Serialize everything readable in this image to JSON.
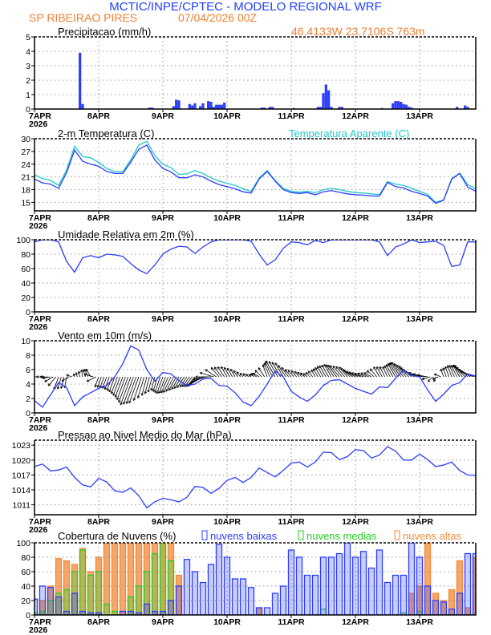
{
  "header": {
    "title": "MCTIC/INPE/CPTEC - MODELO REGIONAL WRF",
    "location": "SP RIBEIRAO PIRES",
    "run": "07/04/2026 00Z",
    "coords": "46.4133W 23.7106S 763m"
  },
  "colors": {
    "blue": "#2a3cff",
    "cyan": "#1fc8c8",
    "green": "#20d020",
    "orange": "#f08a3a",
    "title_blue": "#2040ff",
    "location_orange": "#f07f30"
  },
  "xaxis": {
    "ticks": [
      "7APR",
      "8APR",
      "9APR",
      "10APR",
      "11APR",
      "12APR",
      "13APR"
    ],
    "year": "2026"
  },
  "chart_data": [
    {
      "type": "bar",
      "title": "Precipitacao (mm/h)",
      "ylim": [
        0,
        5
      ],
      "yticks": [
        "0",
        "1",
        "2",
        "3",
        "4",
        "5"
      ],
      "grid": true,
      "bars": [
        [
          "07APR17Z",
          3.9
        ],
        [
          "07APR18Z",
          0.35
        ],
        [
          "08APR19Z",
          0.1
        ],
        [
          "08APR20Z",
          0.1
        ],
        [
          "09APR04Z",
          0.2
        ],
        [
          "09APR05Z",
          0.65
        ],
        [
          "09APR06Z",
          0.6
        ],
        [
          "09APR10Z",
          0.35
        ],
        [
          "09APR11Z",
          0.25
        ],
        [
          "09APR12Z",
          0.4
        ],
        [
          "09APR14Z",
          0.2
        ],
        [
          "09APR15Z",
          0.4
        ],
        [
          "09APR17Z",
          0.55
        ],
        [
          "09APR18Z",
          0.5
        ],
        [
          "09APR19Z",
          0.15
        ],
        [
          "09APR20Z",
          0.3
        ],
        [
          "09APR21Z",
          0.3
        ],
        [
          "09APR22Z",
          0.3
        ],
        [
          "09APR23Z",
          0.45
        ],
        [
          "10APR13Z",
          0.1
        ],
        [
          "10APR14Z",
          0.1
        ],
        [
          "10APR16Z",
          0.15
        ],
        [
          "10APR17Z",
          0.15
        ],
        [
          "11APR01Z",
          0.07
        ],
        [
          "11APR10Z",
          0.15
        ],
        [
          "11APR11Z",
          0.15
        ],
        [
          "11APR12Z",
          1.1
        ],
        [
          "11APR13Z",
          1.7
        ],
        [
          "11APR14Z",
          1.3
        ],
        [
          "11APR15Z",
          0.15
        ],
        [
          "11APR18Z",
          0.15
        ],
        [
          "11APR19Z",
          0.15
        ],
        [
          "12APR10Z",
          0.07
        ],
        [
          "12APR14Z",
          0.4
        ],
        [
          "12APR15Z",
          0.55
        ],
        [
          "12APR16Z",
          0.55
        ],
        [
          "12APR17Z",
          0.5
        ],
        [
          "12APR18Z",
          0.35
        ],
        [
          "12APR19Z",
          0.3
        ],
        [
          "12APR20Z",
          0.15
        ],
        [
          "12APR21Z",
          0.1
        ],
        [
          "13APR14Z",
          0.15
        ],
        [
          "13APR17Z",
          0.25
        ],
        [
          "13APR18Z",
          0.15
        ]
      ]
    },
    {
      "type": "line",
      "title": "2-m Temperatura (C)",
      "ylim": [
        13,
        30
      ],
      "yticks": [
        "15",
        "18",
        "21",
        "24",
        "27",
        "30"
      ],
      "grid": true,
      "series": [
        {
          "values": [
            20.5,
            19.6,
            19.3,
            18.3,
            22,
            27.3,
            24.7,
            24,
            23.5,
            22.3,
            21.8,
            21.8,
            24.5,
            27.5,
            28.5,
            25,
            23,
            22.2,
            20.8,
            20.8,
            21.5,
            21,
            20,
            19.2,
            18.7,
            18.2,
            17.5,
            17.2,
            20.5,
            22.3,
            20,
            18,
            17.3,
            17.1,
            17.3,
            16.8,
            17.5,
            17.8,
            17.4,
            17,
            16.8,
            16.7,
            16.5,
            16.5,
            19.7,
            18.7,
            18.4,
            17.6,
            17.1,
            16.5,
            14.8,
            15.5,
            20.5,
            21.8,
            18.6,
            17.6
          ],
          "color": "#2a3cff"
        },
        {
          "name": "Temperatura Aparente (C)",
          "values": [
            21.5,
            20.6,
            20.2,
            19.0,
            22.6,
            28.2,
            25.8,
            25.5,
            24.4,
            23.0,
            22.2,
            22.2,
            25.0,
            28.5,
            29.4,
            26.0,
            24.0,
            23.2,
            21.6,
            21.7,
            22.5,
            21.8,
            20.8,
            20.0,
            19.5,
            19.0,
            18.2,
            17.6,
            20.7,
            22.5,
            20.2,
            18.3,
            17.6,
            17.4,
            17.6,
            17.3,
            18.0,
            18.3,
            18.0,
            17.6,
            17.3,
            17.2,
            17.0,
            16.8,
            19.9,
            19.3,
            19.0,
            18.3,
            17.6,
            16.9,
            15.0,
            15.6,
            20.6,
            21.9,
            19.2,
            18.2
          ],
          "color": "#1fc8c8"
        }
      ]
    },
    {
      "type": "line",
      "title": "Umidade Relativa em 2m (%)",
      "ylim": [
        0,
        100
      ],
      "yticks": [
        "0",
        "20",
        "40",
        "60",
        "80",
        "100"
      ],
      "grid": true,
      "series": [
        {
          "values": [
            97,
            100,
            100,
            97,
            70,
            55,
            75,
            78,
            75,
            80,
            79,
            77,
            67,
            58,
            53,
            65,
            80,
            87,
            91,
            90,
            81,
            90,
            97,
            100,
            100,
            100,
            100,
            98,
            80,
            65,
            72,
            88,
            97,
            96,
            93,
            99,
            96,
            100,
            100,
            100,
            100,
            100,
            100,
            97,
            78,
            90,
            94,
            100,
            96,
            97,
            98,
            92,
            63,
            65,
            97,
            97
          ],
          "color": "#2a3cff"
        }
      ]
    },
    {
      "type": "line",
      "title": "Vento em 10m (m/s)",
      "ylim": [
        0,
        10
      ],
      "yticks": [
        "0",
        "2",
        "4",
        "6",
        "8",
        "10"
      ],
      "grid": true,
      "series": [
        {
          "values": [
            1.7,
            0.8,
            2.5,
            4.2,
            3.5,
            1.0,
            2.2,
            2.8,
            3.4,
            3.8,
            5.0,
            6.8,
            9.3,
            8.7,
            6.0,
            4.4,
            5.6,
            5.4,
            4.5,
            3.8,
            4.0,
            4.7,
            4.8,
            3.8,
            3.7,
            2.8,
            1.5,
            1.0,
            2.3,
            4.0,
            5.8,
            5.0,
            3.0,
            2.2,
            1.6,
            2.5,
            3.8,
            4.5,
            4.6,
            4.0,
            3.4,
            3.0,
            2.6,
            3.6,
            3.5,
            4.8,
            5.9,
            5.2,
            5.0,
            3.2,
            1.6,
            2.6,
            3.8,
            4.2,
            5.4,
            5.1
          ],
          "color": "#2a3cff"
        }
      ],
      "wind_direction_deg": [
        90,
        90,
        80,
        20,
        10,
        160,
        170,
        150,
        20,
        20,
        20,
        20,
        20,
        20,
        15,
        15,
        20,
        25,
        30,
        35,
        40,
        60,
        90,
        140,
        150,
        150,
        140,
        140,
        120,
        160,
        150,
        150,
        140,
        140,
        130,
        150,
        150,
        150,
        140,
        140,
        120,
        110,
        120,
        150,
        155,
        150,
        140,
        130,
        110,
        100,
        20,
        160,
        160,
        150,
        130,
        110
      ]
    },
    {
      "type": "line",
      "title": "Pressao ao Nivel Medio do Mar (hPa)",
      "ylim": [
        1009,
        1024
      ],
      "yticks": [
        "1011",
        "1014",
        "1017",
        "1020",
        "1023"
      ],
      "grid": true,
      "series": [
        {
          "values": [
            1018.7,
            1019.2,
            1017.8,
            1018.0,
            1018.6,
            1016.5,
            1015.0,
            1014.6,
            1016.3,
            1015.6,
            1013.8,
            1013.5,
            1014.4,
            1012.8,
            1010.4,
            1011.6,
            1012.3,
            1012.0,
            1011.6,
            1012.5,
            1014.7,
            1014.5,
            1013.3,
            1014.3,
            1015.9,
            1016.5,
            1015.5,
            1016.5,
            1018.4,
            1017.5,
            1016.6,
            1017.9,
            1019.4,
            1019.6,
            1018.6,
            1019.6,
            1021.6,
            1021.5,
            1020.1,
            1020.7,
            1022.1,
            1021.9,
            1020.4,
            1021.0,
            1022.7,
            1021.8,
            1020.0,
            1020.0,
            1021.2,
            1020.1,
            1018.7,
            1019.0,
            1019.6,
            1017.9,
            1017.0,
            1016.9
          ],
          "color": "#2a3cff"
        }
      ]
    },
    {
      "type": "bar",
      "title": "Cobertura de Nuvens (%)",
      "ylim": [
        0,
        100
      ],
      "yticks": [
        "0",
        "20",
        "40",
        "60",
        "80",
        "100"
      ],
      "grid": true,
      "legend": "top",
      "series": [
        {
          "name": "nuvens altas",
          "color": "#f08a3a",
          "values": [
            0,
            20,
            40,
            78,
            75,
            70,
            92,
            60,
            80,
            100,
            100,
            100,
            100,
            100,
            100,
            100,
            100,
            100,
            55,
            0,
            0,
            0,
            0,
            0,
            0,
            0,
            0,
            0,
            10,
            0,
            0,
            0,
            0,
            0,
            0,
            0,
            0,
            0,
            0,
            0,
            0,
            0,
            0,
            0,
            0,
            0,
            0,
            30,
            40,
            100,
            30,
            20,
            35,
            75,
            10,
            80
          ]
        },
        {
          "name": "nuvens medias",
          "color": "#20d020",
          "values": [
            3,
            5,
            20,
            30,
            35,
            60,
            90,
            55,
            60,
            15,
            5,
            0,
            25,
            40,
            60,
            85,
            100,
            75,
            0,
            0,
            0,
            0,
            0,
            0,
            0,
            0,
            0,
            0,
            0,
            0,
            0,
            0,
            0,
            0,
            0,
            0,
            8,
            0,
            0,
            0,
            0,
            0,
            0,
            0,
            0,
            0,
            3,
            0,
            5,
            0,
            0,
            0,
            0,
            0,
            0,
            0
          ]
        },
        {
          "name": "nuvens baixas",
          "color": "#2a3cff",
          "values": [
            22,
            40,
            38,
            25,
            5,
            30,
            5,
            3,
            3,
            0,
            0,
            5,
            5,
            3,
            15,
            5,
            5,
            20,
            40,
            77,
            60,
            45,
            70,
            98,
            80,
            50,
            50,
            38,
            10,
            10,
            30,
            40,
            90,
            80,
            55,
            55,
            80,
            80,
            85,
            100,
            80,
            88,
            65,
            90,
            45,
            55,
            55,
            100,
            80,
            40,
            20,
            18,
            8,
            30,
            85,
            85
          ]
        }
      ]
    }
  ],
  "times": [
    "07APR00Z",
    "07APR03Z",
    "07APR06Z",
    "07APR09Z",
    "07APR12Z",
    "07APR15Z",
    "07APR18Z",
    "07APR21Z",
    "08APR00Z",
    "08APR03Z",
    "08APR06Z",
    "08APR09Z",
    "08APR12Z",
    "08APR15Z",
    "08APR18Z",
    "08APR21Z",
    "09APR00Z",
    "09APR03Z",
    "09APR06Z",
    "09APR09Z",
    "09APR12Z",
    "09APR15Z",
    "09APR18Z",
    "09APR21Z",
    "10APR00Z",
    "10APR03Z",
    "10APR06Z",
    "10APR09Z",
    "10APR12Z",
    "10APR15Z",
    "10APR18Z",
    "10APR21Z",
    "11APR00Z",
    "11APR03Z",
    "11APR06Z",
    "11APR09Z",
    "11APR12Z",
    "11APR15Z",
    "11APR18Z",
    "11APR21Z",
    "12APR00Z",
    "12APR03Z",
    "12APR06Z",
    "12APR09Z",
    "12APR12Z",
    "12APR15Z",
    "12APR18Z",
    "12APR21Z",
    "13APR00Z",
    "13APR03Z",
    "13APR06Z",
    "13APR09Z",
    "13APR12Z",
    "13APR15Z",
    "13APR18Z",
    "13APR21Z"
  ]
}
